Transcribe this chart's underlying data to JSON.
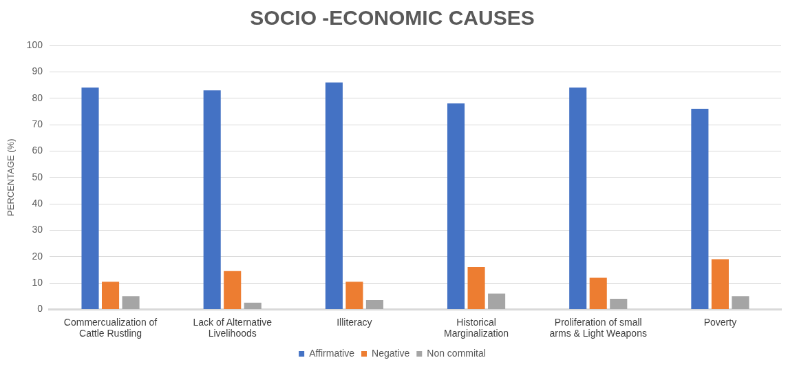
{
  "chart_data": {
    "type": "bar",
    "title": "SOCIO -ECONOMIC CAUSES",
    "ylabel": "PERCENTAGE (%)",
    "categories": [
      "Commercualization of Cattle Rustling",
      "Lack of Alternative Livelihoods",
      "Illiteracy",
      "Historical Marginalization",
      "Proliferation of small arms & Light Weapons",
      "Poverty"
    ],
    "series": [
      {
        "name": "Affirmative",
        "color": "#4472c4",
        "values": [
          84,
          83,
          86,
          78,
          84,
          76
        ]
      },
      {
        "name": "Negative",
        "color": "#ed7d31",
        "values": [
          10.5,
          14.5,
          10.5,
          16,
          12,
          19
        ]
      },
      {
        "name": "Non commital",
        "color": "#a5a5a5",
        "values": [
          5,
          2.5,
          3.5,
          6,
          4,
          5
        ]
      }
    ],
    "ylim": [
      0,
      100
    ],
    "yticks": [
      0,
      10,
      20,
      30,
      40,
      50,
      60,
      70,
      80,
      90,
      100
    ],
    "grid": "y",
    "legend": "bottom"
  }
}
